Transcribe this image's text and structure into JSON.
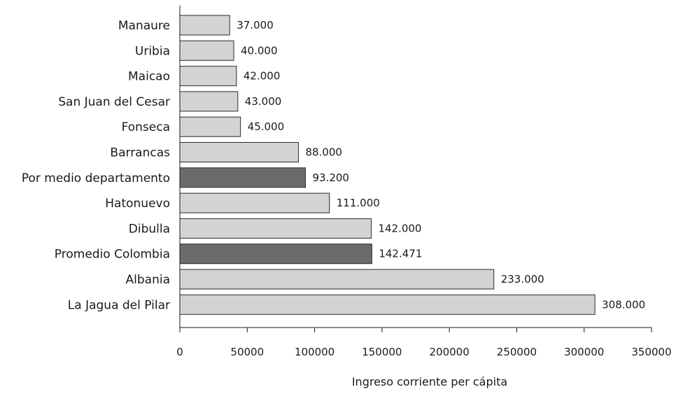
{
  "chart_data": {
    "type": "bar",
    "orientation": "horizontal",
    "xlabel": "Ingreso corriente per cápita",
    "ylabel": "",
    "xlim": [
      0,
      350000
    ],
    "xticks": [
      0,
      50000,
      100000,
      150000,
      200000,
      250000,
      300000,
      350000
    ],
    "xtick_labels": [
      "0",
      "50000",
      "100000",
      "150000",
      "200000",
      "250000",
      "300000",
      "350000"
    ],
    "grid": false,
    "colors": {
      "default": "#d3d3d3",
      "highlight": "#6b6b6d",
      "border": "#2a2a2a"
    },
    "bars": [
      {
        "category": "Manaure",
        "value": 37000,
        "label": "37.000",
        "highlight": false
      },
      {
        "category": "Uribia",
        "value": 40000,
        "label": "40.000",
        "highlight": false
      },
      {
        "category": "Maicao",
        "value": 42000,
        "label": "42.000",
        "highlight": false
      },
      {
        "category": "San Juan del Cesar",
        "value": 43000,
        "label": "43.000",
        "highlight": false
      },
      {
        "category": "Fonseca",
        "value": 45000,
        "label": "45.000",
        "highlight": false
      },
      {
        "category": "Barrancas",
        "value": 88000,
        "label": "88.000",
        "highlight": false
      },
      {
        "category": "Por medio departamento",
        "value": 93200,
        "label": "93.200",
        "highlight": true
      },
      {
        "category": "Hatonuevo",
        "value": 111000,
        "label": "111.000",
        "highlight": false
      },
      {
        "category": "Dibulla",
        "value": 142000,
        "label": "142.000",
        "highlight": false
      },
      {
        "category": "Promedio Colombia",
        "value": 142471,
        "label": "142.471",
        "highlight": true
      },
      {
        "category": "Albania",
        "value": 233000,
        "label": "233.000",
        "highlight": false
      },
      {
        "category": "La Jagua del Pilar",
        "value": 308000,
        "label": "308.000",
        "highlight": false
      }
    ]
  }
}
